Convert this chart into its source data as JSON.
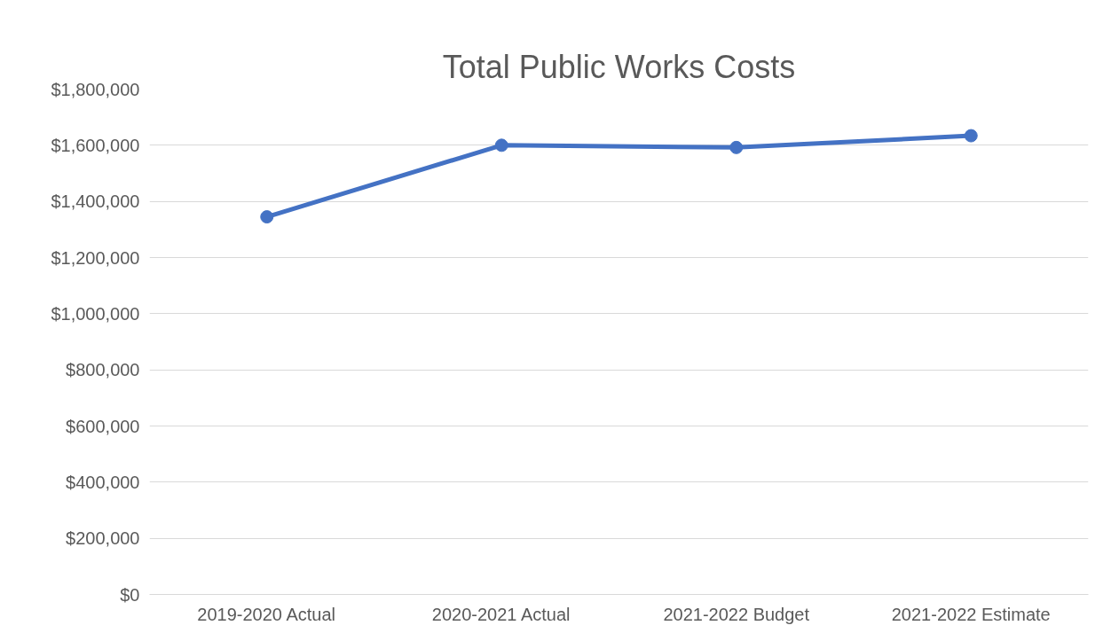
{
  "chart_data": {
    "type": "line",
    "title": "Total Public Works Costs",
    "categories": [
      "2019-2020 Actual",
      "2020-2021 Actual",
      "2021-2022 Budget",
      "2021-2022 Estimate"
    ],
    "series": [
      {
        "color": "#4472c4",
        "values": [
          1345000,
          1600000,
          1592000,
          1634000
        ]
      }
    ],
    "ylim": [
      0,
      1800000
    ],
    "yticks": [
      {
        "value": 0,
        "label": "$0"
      },
      {
        "value": 200000,
        "label": "$200,000"
      },
      {
        "value": 400000,
        "label": "$400,000"
      },
      {
        "value": 600000,
        "label": "$600,000"
      },
      {
        "value": 800000,
        "label": "$800,000"
      },
      {
        "value": 1000000,
        "label": "$1,000,000"
      },
      {
        "value": 1200000,
        "label": "$1,200,000"
      },
      {
        "value": 1400000,
        "label": "$1,400,000"
      },
      {
        "value": 1600000,
        "label": "$1,600,000"
      },
      {
        "value": 1800000,
        "label": "$1,800,000"
      }
    ],
    "grid": "y",
    "marker": "circle",
    "line_style": "solid"
  }
}
